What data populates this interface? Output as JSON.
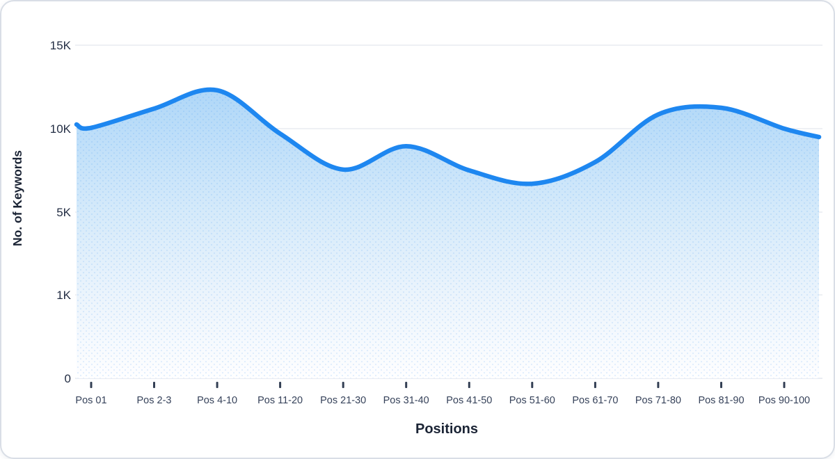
{
  "chart_data": {
    "type": "area",
    "title": "",
    "xlabel": "Positions",
    "ylabel": "No. of Keywords",
    "categories": [
      "Pos 01",
      "Pos 2-3",
      "Pos 4-10",
      "Pos 11-20",
      "Pos 21-30",
      "Pos 31-40",
      "Pos 41-50",
      "Pos 51-60",
      "Pos 61-70",
      "Pos 71-80",
      "Pos 81-90",
      "Pos 90-100"
    ],
    "series": [
      {
        "name": "No. of Keywords",
        "values": [
          10050,
          11200,
          12300,
          9700,
          7550,
          8950,
          7500,
          6700,
          8000,
          10850,
          11250,
          10000
        ]
      }
    ],
    "curve_edge_values": {
      "left": 10250,
      "right": 9500
    },
    "yticks": [
      {
        "label": "0",
        "value": 0
      },
      {
        "label": "1K",
        "value": 1000
      },
      {
        "label": "5K",
        "value": 5000
      },
      {
        "label": "10K",
        "value": 10000
      },
      {
        "label": "15K",
        "value": 15000
      }
    ],
    "ylim": [
      0,
      15000
    ],
    "grid": true,
    "legend": false,
    "smooth": true,
    "colors": {
      "line": "#1E87F0",
      "fill_top": "#AFD7F8",
      "fill_mid": "#D5EAFA",
      "fill_low": "#EBF4FC",
      "fill_bottom": "#FEFEFF",
      "dot_pattern": "rgba(30,135,240,0.13)",
      "gridline": "#E8EBF0",
      "axis_line": "#E2E6ED",
      "tick_mark": "#333F54",
      "tick_label": "#36425A",
      "ytick_label": "#232E44",
      "axis_title": "#1B2435"
    }
  }
}
